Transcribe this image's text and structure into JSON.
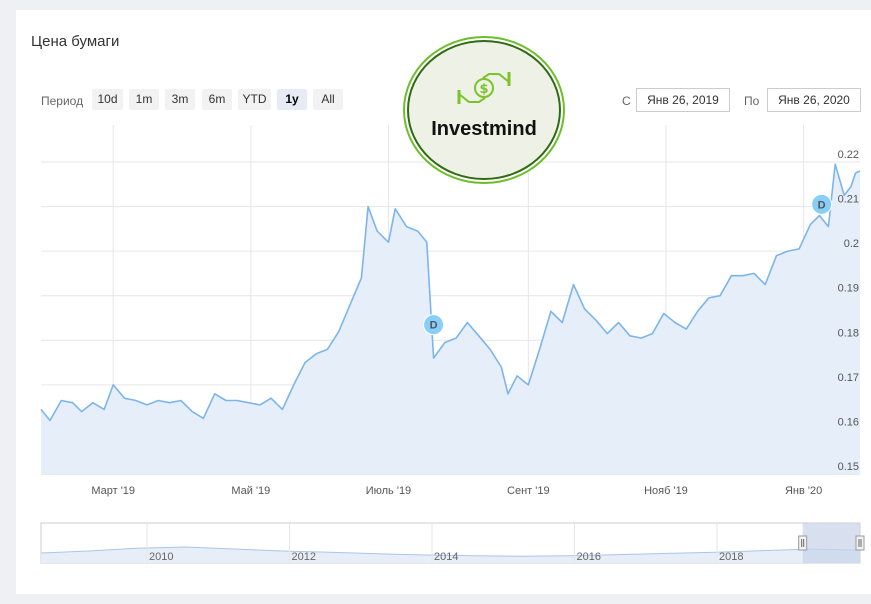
{
  "title": "Цена бумаги",
  "period": {
    "label": "Период",
    "buttons": [
      "10d",
      "1m",
      "3m",
      "6m",
      "YTD",
      "1y",
      "All"
    ],
    "active": "1y"
  },
  "range": {
    "from_label": "С",
    "from_value": "Янв 26, 2019",
    "to_label": "По",
    "to_value": "Янв 26, 2020"
  },
  "logo": {
    "text": "Investmind"
  },
  "colors": {
    "line": "#7cb5ec",
    "fill": "#e6eff9",
    "marker": "#87cefa",
    "navigator_mask": "#c8d3e9",
    "grid": "#e6e6e6"
  },
  "chart_data": {
    "type": "area",
    "x_axis": {
      "type": "date",
      "range": [
        "2019-01-28",
        "2020-01-26"
      ],
      "ticks": [
        {
          "date": "2019-03-01",
          "label": "Март '19"
        },
        {
          "date": "2019-05-01",
          "label": "Май '19"
        },
        {
          "date": "2019-07-01",
          "label": "Июль '19"
        },
        {
          "date": "2019-09-01",
          "label": "Сент '19"
        },
        {
          "date": "2019-11-01",
          "label": "Нояб '19"
        },
        {
          "date": "2020-01-01",
          "label": "Янв '20"
        }
      ]
    },
    "y_axis": {
      "range": [
        0.15,
        0.22
      ],
      "ticks": [
        0.15,
        0.16,
        0.17,
        0.18,
        0.19,
        0.2,
        0.21,
        0.22
      ],
      "position": "right",
      "grid": true
    },
    "series": [
      {
        "values": [
          [
            "2019-01-28",
            0.1645
          ],
          [
            "2019-02-01",
            0.162
          ],
          [
            "2019-02-06",
            0.1665
          ],
          [
            "2019-02-11",
            0.166
          ],
          [
            "2019-02-15",
            0.164
          ],
          [
            "2019-02-20",
            0.166
          ],
          [
            "2019-02-25",
            0.1645
          ],
          [
            "2019-03-01",
            0.17
          ],
          [
            "2019-03-06",
            0.167
          ],
          [
            "2019-03-11",
            0.1665
          ],
          [
            "2019-03-16",
            0.1655
          ],
          [
            "2019-03-21",
            0.1665
          ],
          [
            "2019-03-26",
            0.166
          ],
          [
            "2019-03-31",
            0.1665
          ],
          [
            "2019-04-05",
            0.164
          ],
          [
            "2019-04-10",
            0.1625
          ],
          [
            "2019-04-15",
            0.168
          ],
          [
            "2019-04-20",
            0.1665
          ],
          [
            "2019-04-25",
            0.1665
          ],
          [
            "2019-04-30",
            0.166
          ],
          [
            "2019-05-05",
            0.1655
          ],
          [
            "2019-05-10",
            0.167
          ],
          [
            "2019-05-15",
            0.1645
          ],
          [
            "2019-05-20",
            0.17
          ],
          [
            "2019-05-25",
            0.175
          ],
          [
            "2019-05-30",
            0.177
          ],
          [
            "2019-06-04",
            0.178
          ],
          [
            "2019-06-09",
            0.182
          ],
          [
            "2019-06-14",
            0.188
          ],
          [
            "2019-06-19",
            0.194
          ],
          [
            "2019-06-22",
            0.21
          ],
          [
            "2019-06-26",
            0.2045
          ],
          [
            "2019-07-01",
            0.202
          ],
          [
            "2019-07-04",
            0.2095
          ],
          [
            "2019-07-09",
            0.2055
          ],
          [
            "2019-07-14",
            0.2045
          ],
          [
            "2019-07-18",
            0.202
          ],
          [
            "2019-07-21",
            0.176
          ],
          [
            "2019-07-26",
            0.1795
          ],
          [
            "2019-07-31",
            0.1805
          ],
          [
            "2019-08-05",
            0.184
          ],
          [
            "2019-08-10",
            0.181
          ],
          [
            "2019-08-15",
            0.178
          ],
          [
            "2019-08-20",
            0.174
          ],
          [
            "2019-08-23",
            0.168
          ],
          [
            "2019-08-27",
            0.172
          ],
          [
            "2019-09-01",
            0.17
          ],
          [
            "2019-09-06",
            0.178
          ],
          [
            "2019-09-11",
            0.1865
          ],
          [
            "2019-09-16",
            0.184
          ],
          [
            "2019-09-21",
            0.1925
          ],
          [
            "2019-09-26",
            0.187
          ],
          [
            "2019-10-01",
            0.1845
          ],
          [
            "2019-10-06",
            0.1815
          ],
          [
            "2019-10-11",
            0.184
          ],
          [
            "2019-10-16",
            0.181
          ],
          [
            "2019-10-21",
            0.1805
          ],
          [
            "2019-10-26",
            0.1815
          ],
          [
            "2019-10-31",
            0.186
          ],
          [
            "2019-11-05",
            0.184
          ],
          [
            "2019-11-10",
            0.1825
          ],
          [
            "2019-11-15",
            0.1865
          ],
          [
            "2019-11-20",
            0.1895
          ],
          [
            "2019-11-25",
            0.19
          ],
          [
            "2019-11-30",
            0.1945
          ],
          [
            "2019-12-05",
            0.1945
          ],
          [
            "2019-12-10",
            0.195
          ],
          [
            "2019-12-15",
            0.1925
          ],
          [
            "2019-12-20",
            0.199
          ],
          [
            "2019-12-25",
            0.2
          ],
          [
            "2019-12-30",
            0.2005
          ],
          [
            "2020-01-04",
            0.206
          ],
          [
            "2020-01-08",
            0.208
          ],
          [
            "2020-01-12",
            0.2055
          ],
          [
            "2020-01-15",
            0.2195
          ],
          [
            "2020-01-19",
            0.2125
          ],
          [
            "2020-01-22",
            0.2145
          ],
          [
            "2020-01-24",
            0.2175
          ],
          [
            "2020-01-26",
            0.218
          ]
        ]
      }
    ],
    "annotations": [
      {
        "date": "2019-07-21",
        "value": 0.1835,
        "label": "D"
      },
      {
        "date": "2020-01-09",
        "value": 0.2105,
        "label": "D"
      }
    ],
    "navigator": {
      "ticks": [
        "2010",
        "2012",
        "2014",
        "2016",
        "2018"
      ],
      "values": [
        0.15,
        0.2,
        0.27,
        0.3,
        0.25,
        0.2,
        0.17,
        0.13,
        0.1,
        0.08,
        0.07,
        0.08,
        0.11,
        0.14,
        0.17,
        0.21,
        0.25,
        0.22
      ],
      "selected_range": [
        0.93,
        1.0
      ]
    }
  }
}
